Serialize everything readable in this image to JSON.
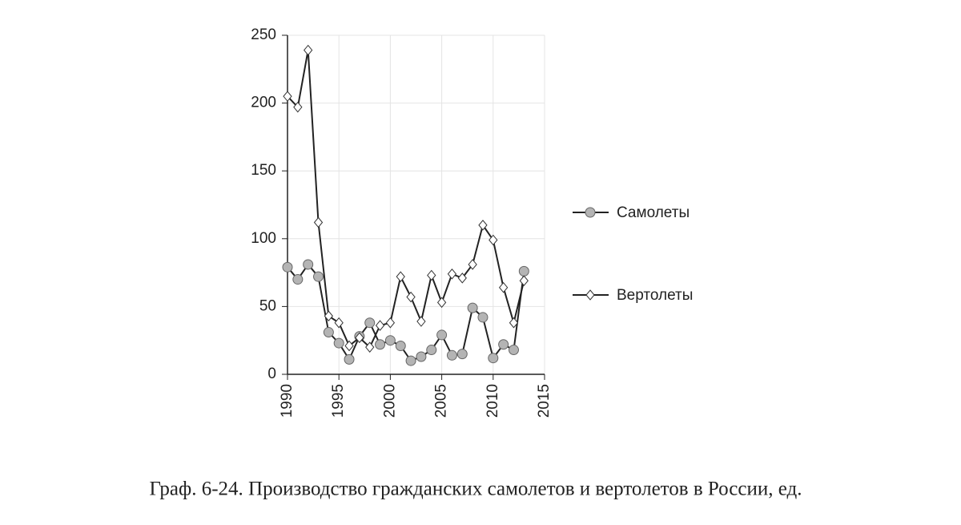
{
  "chart_data": {
    "type": "line",
    "title": "Граф. 6-24. Производство гражданских самолетов и вертолетов в России, ед.",
    "x": [
      1990,
      1991,
      1992,
      1993,
      1994,
      1995,
      1996,
      1997,
      1998,
      1999,
      2000,
      2001,
      2002,
      2003,
      2004,
      2005,
      2006,
      2007,
      2008,
      2009,
      2010,
      2011,
      2012,
      2013
    ],
    "series": [
      {
        "name": "Самолеты",
        "color": "#222222",
        "marker": "circle",
        "marker_fill": "#b4b4b4",
        "values": [
          79,
          70,
          81,
          72,
          31,
          23,
          11,
          28,
          38,
          22,
          25,
          21,
          10,
          13,
          18,
          29,
          14,
          15,
          49,
          42,
          12,
          22,
          18,
          76
        ]
      },
      {
        "name": "Вертолеты",
        "color": "#222222",
        "marker": "diamond",
        "marker_fill": "#ffffff",
        "values": [
          205,
          197,
          239,
          112,
          43,
          38,
          21,
          27,
          20,
          36,
          38,
          72,
          57,
          39,
          73,
          53,
          74,
          71,
          81,
          110,
          99,
          64,
          38,
          69
        ]
      }
    ],
    "xlim": [
      1990,
      2015
    ],
    "xticks": [
      1990,
      1995,
      2000,
      2005,
      2010,
      2015
    ],
    "ylim": [
      0,
      250
    ],
    "yticks": [
      0,
      50,
      100,
      150,
      200,
      250
    ],
    "grid": true,
    "legend": "right"
  }
}
